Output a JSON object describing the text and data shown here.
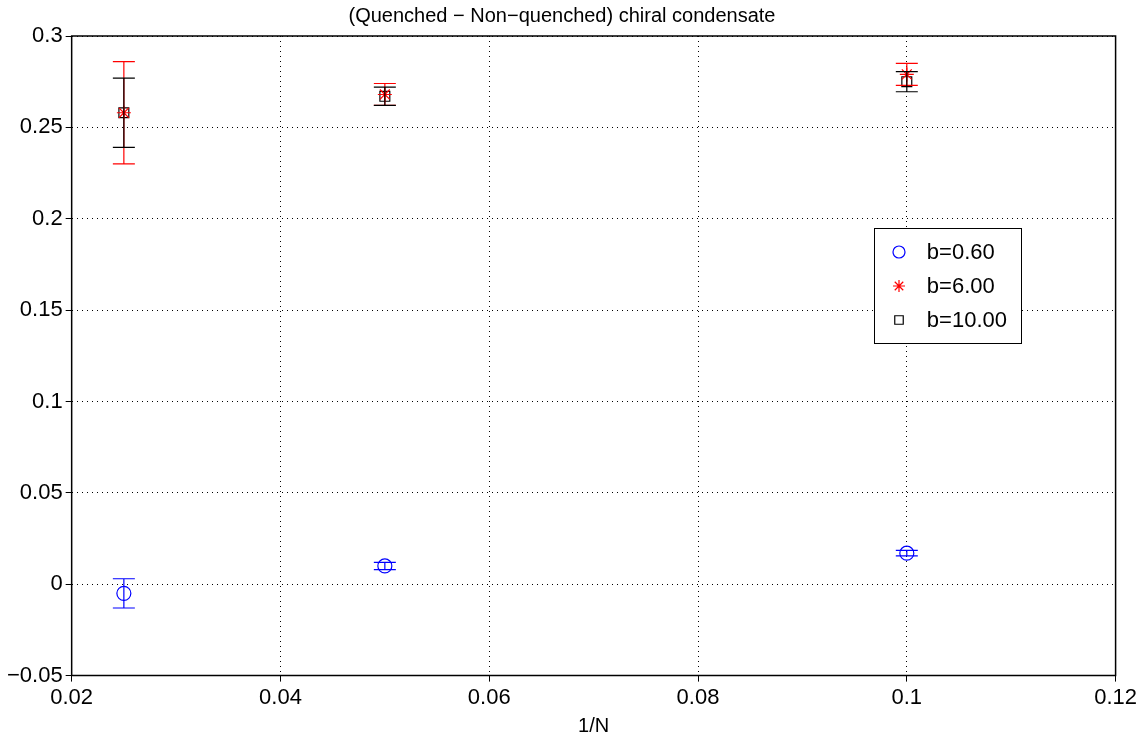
{
  "chart_data": {
    "type": "scatter",
    "title": "(Quenched − Non−quenched) chiral condensate",
    "xlabel": "1/N",
    "xlim": [
      0.02,
      0.12
    ],
    "xticks": [
      0.02,
      0.04,
      0.06,
      0.08,
      0.1,
      0.12
    ],
    "ylim": [
      -0.05,
      0.3
    ],
    "yticks": [
      {
        "value": -0.05,
        "label": "−0.05"
      },
      0,
      0.05,
      0.1,
      0.15,
      0.2,
      0.25,
      0.3
    ],
    "grid": true,
    "line_style": "dotted",
    "legend": "right",
    "x": [
      0.025,
      0.05,
      0.1
    ],
    "series": [
      {
        "name": "b=0.60",
        "color": "#0000ff",
        "marker": "circle",
        "values": [
          -0.005,
          0.01,
          0.017
        ],
        "errors": [
          0.008,
          0.002,
          0.0015
        ]
      },
      {
        "name": "b=6.00",
        "color": "#ff0000",
        "marker": "cross",
        "values": [
          0.258,
          0.268,
          0.279
        ],
        "errors": [
          0.028,
          0.006,
          0.006
        ]
      },
      {
        "name": "b=10.00",
        "color": "#000000",
        "marker": "square",
        "values": [
          0.258,
          0.267,
          0.275
        ],
        "errors": [
          0.019,
          0.005,
          0.0055
        ]
      }
    ]
  }
}
